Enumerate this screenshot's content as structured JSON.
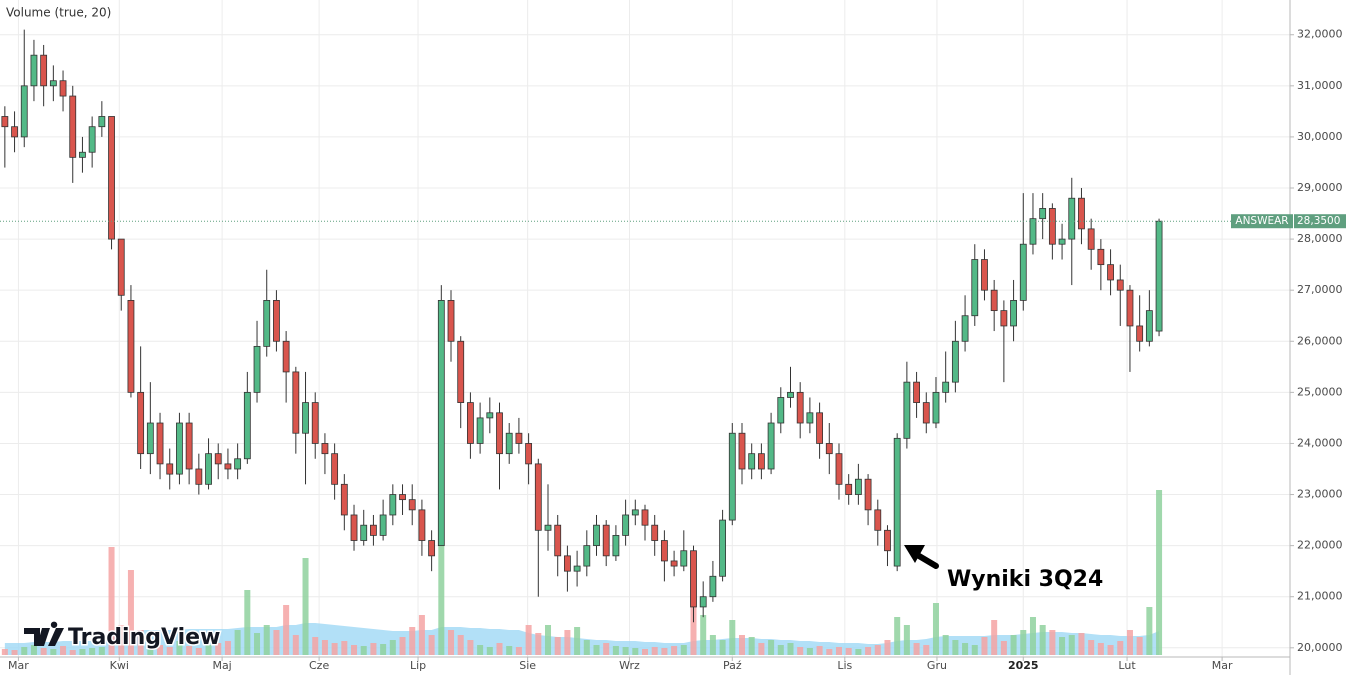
{
  "chart_data": {
    "type": "candlestick",
    "indicator_label": "Volume (true, 20)",
    "watermark": "TradingView",
    "annotation": "Wyniki 3Q24",
    "up_color": "#53b987",
    "down_color": "#d9554d",
    "volume_up_color": "#8fd19e",
    "volume_down_color": "#f5a3a3",
    "volume_ma_color": "#9fd8f5",
    "grid": true,
    "ylim": [
      19.82,
      32.68
    ],
    "yticks": [
      {
        "value": 20,
        "label": "20,0000"
      },
      {
        "value": 21,
        "label": "21,0000"
      },
      {
        "value": 22,
        "label": "22,0000"
      },
      {
        "value": 23,
        "label": "23,0000"
      },
      {
        "value": 24,
        "label": "24,0000"
      },
      {
        "value": 25,
        "label": "25,0000"
      },
      {
        "value": 26,
        "label": "26,0000"
      },
      {
        "value": 27,
        "label": "27,0000"
      },
      {
        "value": 28,
        "label": "28,0000"
      },
      {
        "value": 29,
        "label": "29,0000"
      },
      {
        "value": 30,
        "label": "30,0000"
      },
      {
        "value": 31,
        "label": "31,0000"
      },
      {
        "value": 32,
        "label": "32,0000"
      }
    ],
    "xlim": [
      -0.5,
      132.5
    ],
    "xticks": [
      {
        "value": 1.4,
        "label": "Mar"
      },
      {
        "value": 11.8,
        "label": "Kwi"
      },
      {
        "value": 22.4,
        "label": "Maj"
      },
      {
        "value": 32.4,
        "label": "Cze"
      },
      {
        "value": 42.6,
        "label": "Lip"
      },
      {
        "value": 53.9,
        "label": "Sie"
      },
      {
        "value": 64.4,
        "label": "Wrz"
      },
      {
        "value": 75.0,
        "label": "Paź"
      },
      {
        "value": 86.6,
        "label": "Lis"
      },
      {
        "value": 96.1,
        "label": "Gru"
      },
      {
        "value": 105.0,
        "label": "2025",
        "bold": true
      },
      {
        "value": 115.7,
        "label": "Lut"
      },
      {
        "value": 125.5,
        "label": "Mar"
      }
    ],
    "last_price": {
      "name": "ANSWEAR",
      "value": 28.35,
      "label": "28,3500",
      "color": "#5f9f7f"
    },
    "open": [
      30.4,
      30.2,
      30.0,
      31.0,
      31.6,
      31.0,
      31.1,
      30.8,
      29.6,
      29.7,
      30.2,
      30.4,
      28.0,
      26.8,
      25.0,
      23.8,
      24.4,
      23.6,
      23.4,
      24.4,
      23.5,
      23.2,
      23.8,
      23.6,
      23.5,
      23.7,
      25.0,
      25.9,
      26.8,
      26.0,
      25.4,
      24.2,
      24.8,
      24.0,
      23.8,
      23.2,
      22.6,
      22.1,
      22.4,
      22.2,
      22.6,
      23.0,
      22.9,
      22.7,
      22.1,
      22.0,
      26.8,
      26.0,
      24.8,
      24.0,
      24.5,
      24.6,
      23.8,
      24.2,
      24.0,
      23.6,
      22.3,
      22.4,
      21.8,
      21.5,
      21.6,
      22.0,
      22.4,
      21.8,
      22.2,
      22.6,
      22.7,
      22.4,
      22.1,
      21.7,
      21.6,
      21.9,
      20.8,
      21.0,
      21.4,
      22.5,
      24.2,
      23.5,
      23.8,
      23.5,
      24.4,
      24.9,
      25.0,
      24.4,
      24.6,
      24.0,
      23.8,
      23.2,
      23.0,
      23.3,
      22.7,
      22.3,
      21.6,
      24.1,
      25.2,
      24.8,
      24.4,
      25.0,
      25.2,
      26.0,
      26.5,
      27.6,
      27.0,
      26.6,
      26.3,
      26.8,
      27.9,
      28.4,
      28.6,
      27.9,
      28.0,
      28.8,
      28.2,
      27.8,
      27.5,
      27.2,
      27.0,
      26.3,
      26.0,
      26.2
    ],
    "high": [
      30.6,
      30.5,
      32.1,
      31.9,
      31.8,
      31.4,
      31.3,
      31.0,
      30.0,
      30.4,
      30.7,
      30.4,
      28.0,
      27.1,
      25.9,
      25.2,
      24.6,
      23.9,
      24.6,
      24.6,
      23.8,
      24.1,
      24.0,
      23.9,
      24.0,
      25.4,
      26.4,
      27.4,
      27.0,
      26.2,
      25.5,
      25.4,
      25.0,
      24.2,
      24.0,
      23.4,
      22.8,
      22.7,
      22.6,
      22.9,
      23.2,
      23.2,
      23.2,
      22.9,
      22.3,
      27.1,
      27.0,
      26.1,
      25.0,
      24.8,
      24.9,
      24.8,
      24.4,
      24.5,
      24.2,
      23.7,
      23.2,
      22.6,
      22.0,
      21.9,
      22.3,
      22.6,
      22.5,
      22.4,
      22.9,
      22.9,
      22.8,
      22.6,
      22.3,
      21.9,
      22.3,
      22.0,
      21.3,
      21.7,
      22.7,
      24.4,
      24.4,
      24.0,
      24.0,
      24.6,
      25.1,
      25.5,
      25.2,
      24.9,
      24.8,
      24.4,
      24.0,
      23.4,
      23.6,
      23.4,
      22.9,
      22.4,
      24.2,
      25.6,
      25.4,
      25.0,
      25.3,
      25.8,
      26.4,
      26.9,
      27.9,
      27.8,
      27.2,
      26.8,
      27.2,
      28.9,
      28.9,
      28.9,
      28.7,
      28.3,
      29.2,
      29.0,
      28.4,
      28.0,
      27.8,
      27.5,
      27.1,
      26.9,
      27.0,
      28.4
    ],
    "low": [
      29.4,
      29.7,
      29.8,
      30.7,
      30.6,
      30.7,
      30.5,
      29.1,
      29.3,
      29.4,
      30.0,
      27.8,
      26.6,
      24.9,
      23.5,
      23.4,
      23.3,
      23.1,
      23.2,
      23.2,
      23.0,
      23.1,
      23.3,
      23.3,
      23.3,
      23.6,
      24.8,
      25.7,
      25.8,
      24.8,
      23.8,
      23.2,
      23.7,
      23.4,
      22.9,
      22.3,
      21.9,
      22.0,
      22.0,
      22.1,
      22.4,
      22.6,
      22.4,
      21.8,
      21.5,
      22.0,
      25.6,
      24.3,
      23.7,
      23.8,
      24.2,
      23.1,
      23.6,
      23.8,
      23.2,
      21.0,
      21.9,
      21.4,
      21.1,
      21.2,
      21.4,
      21.8,
      21.6,
      21.7,
      22.0,
      22.4,
      22.1,
      21.8,
      21.3,
      21.4,
      21.5,
      20.5,
      20.6,
      20.9,
      21.3,
      22.4,
      23.2,
      23.3,
      23.3,
      23.4,
      24.2,
      24.7,
      24.1,
      24.2,
      23.7,
      23.4,
      22.9,
      22.8,
      22.8,
      22.4,
      22.0,
      21.6,
      21.5,
      23.9,
      24.5,
      24.2,
      24.3,
      24.8,
      25.0,
      25.8,
      26.3,
      26.8,
      26.2,
      25.2,
      26.0,
      26.6,
      27.7,
      28.0,
      27.6,
      27.6,
      27.1,
      27.9,
      27.4,
      27.0,
      26.9,
      26.3,
      25.4,
      25.8,
      25.9,
      26.1
    ],
    "close": [
      30.2,
      30.0,
      31.0,
      31.6,
      31.0,
      31.1,
      30.8,
      29.6,
      29.7,
      30.2,
      30.4,
      28.0,
      26.9,
      25.0,
      23.8,
      24.4,
      23.6,
      23.4,
      24.4,
      23.5,
      23.2,
      23.8,
      23.6,
      23.5,
      23.7,
      25.0,
      25.9,
      26.8,
      26.0,
      25.4,
      24.2,
      24.8,
      24.0,
      23.8,
      23.2,
      22.6,
      22.1,
      22.4,
      22.2,
      22.6,
      23.0,
      22.9,
      22.7,
      22.1,
      21.8,
      26.8,
      26.0,
      24.8,
      24.0,
      24.5,
      24.6,
      23.8,
      24.2,
      24.0,
      23.6,
      22.3,
      22.4,
      21.8,
      21.5,
      21.6,
      22.0,
      22.4,
      21.8,
      22.2,
      22.6,
      22.7,
      22.4,
      22.1,
      21.7,
      21.6,
      21.9,
      20.8,
      21.0,
      21.4,
      22.5,
      24.2,
      23.5,
      23.8,
      23.5,
      24.4,
      24.9,
      25.0,
      24.4,
      24.6,
      24.0,
      23.8,
      23.2,
      23.0,
      23.3,
      22.7,
      22.3,
      21.9,
      24.1,
      25.2,
      24.8,
      24.4,
      25.0,
      25.2,
      26.0,
      26.5,
      27.6,
      27.0,
      26.6,
      26.3,
      26.8,
      27.9,
      28.4,
      28.6,
      27.9,
      28.0,
      28.8,
      28.2,
      27.8,
      27.5,
      27.2,
      27.0,
      26.3,
      26.0,
      26.6,
      28.35
    ],
    "volume": [
      6,
      5,
      8,
      10,
      7,
      6,
      9,
      5,
      6,
      7,
      8,
      108,
      30,
      85,
      25,
      12,
      10,
      8,
      14,
      9,
      7,
      10,
      12,
      14,
      25,
      65,
      22,
      30,
      25,
      50,
      20,
      97,
      18,
      15,
      12,
      14,
      10,
      9,
      12,
      11,
      15,
      18,
      28,
      40,
      20,
      138,
      25,
      20,
      15,
      10,
      8,
      12,
      9,
      8,
      30,
      22,
      30,
      18,
      25,
      28,
      15,
      10,
      12,
      9,
      8,
      7,
      6,
      8,
      7,
      9,
      10,
      72,
      40,
      20,
      15,
      35,
      20,
      18,
      12,
      15,
      10,
      12,
      8,
      7,
      9,
      6,
      8,
      7,
      6,
      8,
      10,
      15,
      38,
      30,
      12,
      10,
      52,
      20,
      15,
      12,
      10,
      18,
      35,
      14,
      20,
      25,
      38,
      30,
      25,
      18,
      20,
      22,
      15,
      12,
      10,
      14,
      25,
      18,
      48,
      165
    ],
    "volume_ma": [
      12,
      12,
      12,
      13,
      13,
      13,
      14,
      14,
      14,
      14,
      15,
      20,
      21,
      24,
      25,
      25,
      25,
      25,
      25,
      26,
      26,
      26,
      26,
      26,
      27,
      28,
      28,
      28,
      28,
      30,
      30,
      32,
      32,
      31,
      30,
      29,
      28,
      27,
      26,
      25,
      24,
      24,
      24,
      25,
      25,
      28,
      28,
      28,
      27,
      27,
      26,
      26,
      25,
      25,
      22,
      20,
      19,
      18,
      18,
      17,
      16,
      15,
      15,
      14,
      14,
      14,
      13,
      13,
      12,
      12,
      12,
      14,
      15,
      15,
      16,
      17,
      17,
      17,
      16,
      16,
      15,
      15,
      14,
      14,
      13,
      13,
      12,
      12,
      12,
      11,
      11,
      12,
      14,
      15,
      15,
      16,
      18,
      19,
      19,
      19,
      19,
      19,
      20,
      20,
      20,
      21,
      22,
      23,
      23,
      23,
      22,
      22,
      21,
      20,
      20,
      19,
      19,
      19,
      20,
      24
    ]
  }
}
